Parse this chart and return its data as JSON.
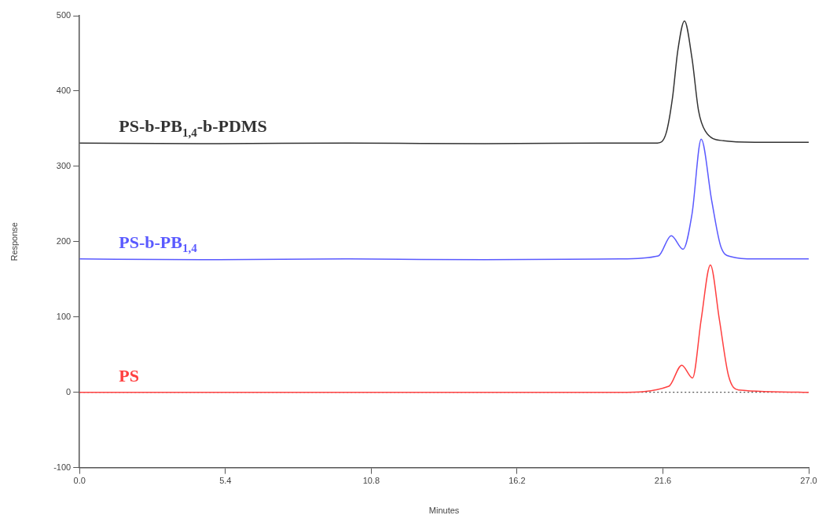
{
  "chart_data": {
    "type": "line",
    "xlabel": "Minutes",
    "ylabel": "Response",
    "xlim": [
      0,
      27
    ],
    "ylim": [
      -100,
      500
    ],
    "xticks": [
      {
        "value": 0,
        "label": "0.0"
      },
      5.4,
      10.8,
      16.2,
      21.6,
      {
        "value": 27,
        "label": "27.0"
      }
    ],
    "yticks": [
      -100,
      0,
      100,
      200,
      300,
      400,
      500
    ],
    "grid": false,
    "legend": false,
    "marker": "none",
    "line_style": "solid",
    "ref_lines": [
      {
        "axis": "y",
        "value": 0,
        "label": null,
        "color": "#555555",
        "line_style": "dotted"
      }
    ],
    "series": [
      {
        "name": "PS-b-PB$_{1,4}$-b-PDMS",
        "color": "#333333",
        "x": [
          0,
          5,
          10,
          15,
          20,
          21.4,
          21.72,
          21.96,
          22.15,
          22.4,
          22.68,
          22.92,
          23.17,
          23.84,
          25,
          27
        ],
        "values": [
          331,
          330,
          331,
          330,
          331,
          331,
          344,
          392,
          453,
          493,
          443,
          374,
          347,
          334,
          332,
          332
        ]
      },
      {
        "name": "PS-b-PB$_{1,4}$",
        "color": "#5a5aff",
        "x": [
          0,
          5,
          10,
          15,
          20,
          21.43,
          21.91,
          22.35,
          22.68,
          23.02,
          23.41,
          23.75,
          24.13,
          25,
          27
        ],
        "values": [
          177,
          176,
          177,
          176,
          177,
          181,
          208,
          190,
          237,
          336,
          254,
          193,
          180,
          177,
          177
        ]
      },
      {
        "name": "PS",
        "color": "#ff4040",
        "x": [
          0,
          5,
          10,
          15,
          20,
          21.82,
          22.3,
          22.7,
          23.02,
          23.36,
          23.69,
          24.03,
          24.4,
          27
        ],
        "values": [
          0,
          0,
          0,
          0,
          0,
          8,
          36,
          19,
          97,
          169,
          97,
          22,
          3,
          0
        ]
      }
    ]
  }
}
